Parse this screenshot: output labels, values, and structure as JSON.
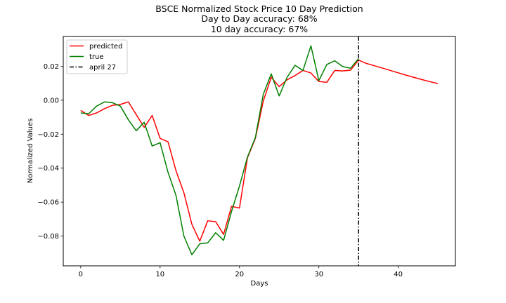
{
  "chart_data": {
    "type": "line",
    "title": [
      "BSCE Normalized Stock Price 10 Day Prediction",
      "Day to Day accuracy: 68%",
      "10 day accuracy: 67%"
    ],
    "xlabel": "Days",
    "ylabel": "Normalized Values",
    "xlim": [
      -2.2,
      47.2
    ],
    "ylim": [
      -0.0975,
      0.0375
    ],
    "xticks": [
      0,
      10,
      20,
      30,
      40
    ],
    "xtick_labels": [
      "0",
      "10",
      "20",
      "30",
      "40"
    ],
    "yticks": [
      -0.08,
      -0.06,
      -0.04,
      -0.02,
      0.0,
      0.02
    ],
    "ytick_labels": [
      "−0.08",
      "−0.06",
      "−0.04",
      "−0.02",
      "0.00",
      "0.02"
    ],
    "grid": false,
    "legend_position": "top-left",
    "series": [
      {
        "name": "predicted",
        "color": "#ff0000",
        "style": "solid",
        "x": [
          0,
          1,
          2,
          3,
          4,
          5,
          6,
          7,
          8,
          9,
          10,
          11,
          12,
          13,
          14,
          15,
          16,
          17,
          18,
          19,
          20,
          21,
          22,
          23,
          24,
          25,
          26,
          27,
          28,
          29,
          30,
          31,
          32,
          33,
          34,
          35,
          36,
          37,
          38,
          39,
          40,
          41,
          42,
          43,
          44,
          45
        ],
        "y": [
          -0.006,
          -0.009,
          -0.0075,
          -0.005,
          -0.003,
          -0.0025,
          -0.001,
          -0.0085,
          -0.016,
          -0.009,
          -0.0225,
          -0.0245,
          -0.0415,
          -0.0545,
          -0.073,
          -0.083,
          -0.071,
          -0.0715,
          -0.079,
          -0.0625,
          -0.0635,
          -0.034,
          -0.0225,
          -0.0005,
          0.0135,
          0.008,
          0.012,
          0.0145,
          0.0175,
          0.016,
          0.011,
          0.0105,
          0.0175,
          0.0172,
          0.0177,
          0.0236,
          0.0216,
          0.0203,
          0.0189,
          0.0175,
          0.0161,
          0.0147,
          0.0134,
          0.0121,
          0.0109,
          0.0098
        ]
      },
      {
        "name": "true",
        "color": "#008000",
        "style": "solid",
        "x": [
          0,
          1,
          2,
          3,
          4,
          5,
          6,
          7,
          8,
          9,
          10,
          11,
          12,
          13,
          14,
          15,
          16,
          17,
          18,
          19,
          20,
          21,
          22,
          23,
          24,
          25,
          26,
          27,
          28,
          29,
          30,
          31,
          32,
          33,
          34,
          35
        ],
        "y": [
          -0.0075,
          -0.008,
          -0.0035,
          -0.001,
          -0.0015,
          -0.0035,
          -0.0115,
          -0.018,
          -0.013,
          -0.027,
          -0.025,
          -0.0425,
          -0.056,
          -0.08,
          -0.091,
          -0.0845,
          -0.084,
          -0.078,
          -0.0825,
          -0.0655,
          -0.0505,
          -0.0335,
          -0.022,
          0.0035,
          0.0155,
          0.0025,
          0.0135,
          0.0205,
          0.0175,
          0.032,
          0.0115,
          0.021,
          0.0232,
          0.0198,
          0.0188,
          0.0245
        ]
      }
    ],
    "vline": {
      "name": "april 27",
      "x": 35,
      "color": "#000000",
      "style": "dashdot"
    }
  }
}
